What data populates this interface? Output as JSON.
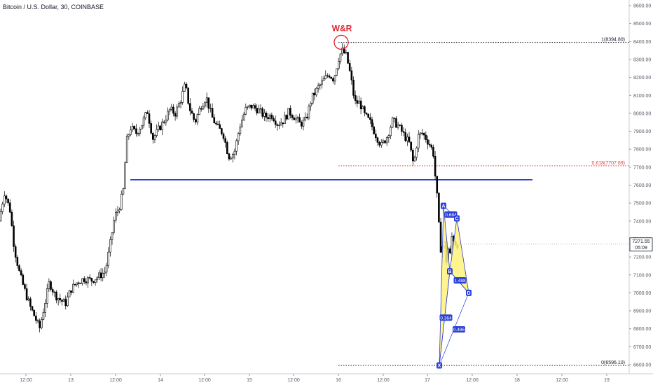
{
  "symbol_title": "Bitcoin / U.S. Dollar, 30, COINBASE",
  "chart_data": {
    "type": "candlestick",
    "title": "Bitcoin / U.S. Dollar, 30, COINBASE",
    "y_ticks": [
      6600,
      6700,
      6800,
      6900,
      7000,
      7100,
      7200,
      7300,
      7400,
      7500,
      7600,
      7700,
      7800,
      7900,
      8000,
      8100,
      8200,
      8300,
      8400,
      8500,
      8600
    ],
    "y_tick_labels": [
      "6600.00",
      "6700.00",
      "6800.00",
      "6900.00",
      "7000.00",
      "7100.00",
      "7200.00",
      "7300.00",
      "7400.00",
      "7500.00",
      "7600.00",
      "7700.00",
      "7800.00",
      "7900.00",
      "8000.00",
      "8100.00",
      "8200.00",
      "8300.00",
      "8400.00",
      "8500.00",
      "8600.00"
    ],
    "ylim": [
      6560,
      8660
    ],
    "x_tick_labels": [
      "12:00",
      "13",
      "12:00",
      "14",
      "12:00",
      "15",
      "12:00",
      "16",
      "12:00",
      "17",
      "12:00",
      "18",
      "12:00",
      "19"
    ],
    "last_price_label": "7271.55",
    "countdown_label": "05:09",
    "candle_path": [
      [
        0,
        7400
      ],
      [
        8,
        7560
      ],
      [
        16,
        7460
      ],
      [
        22,
        7250
      ],
      [
        30,
        7100
      ],
      [
        38,
        7000
      ],
      [
        45,
        6920
      ],
      [
        52,
        6860
      ],
      [
        58,
        6800
      ],
      [
        64,
        6910
      ],
      [
        72,
        7060
      ],
      [
        80,
        6990
      ],
      [
        88,
        6960
      ],
      [
        95,
        6940
      ],
      [
        103,
        7020
      ],
      [
        112,
        7060
      ],
      [
        122,
        7080
      ],
      [
        132,
        7070
      ],
      [
        142,
        7090
      ],
      [
        152,
        7120
      ],
      [
        158,
        7250
      ],
      [
        165,
        7420
      ],
      [
        172,
        7480
      ],
      [
        178,
        7580
      ],
      [
        182,
        7840
      ],
      [
        188,
        7920
      ],
      [
        196,
        7890
      ],
      [
        204,
        7940
      ],
      [
        212,
        8010
      ],
      [
        220,
        7860
      ],
      [
        228,
        7910
      ],
      [
        236,
        7960
      ],
      [
        244,
        8020
      ],
      [
        252,
        8000
      ],
      [
        260,
        8080
      ],
      [
        266,
        8160
      ],
      [
        272,
        8030
      ],
      [
        280,
        7950
      ],
      [
        288,
        8040
      ],
      [
        296,
        8090
      ],
      [
        304,
        7980
      ],
      [
        312,
        7920
      ],
      [
        320,
        7890
      ],
      [
        328,
        7760
      ],
      [
        336,
        7780
      ],
      [
        344,
        7930
      ],
      [
        352,
        8020
      ],
      [
        360,
        8040
      ],
      [
        370,
        8020
      ],
      [
        380,
        7980
      ],
      [
        390,
        7990
      ],
      [
        398,
        7940
      ],
      [
        406,
        7960
      ],
      [
        414,
        8010
      ],
      [
        422,
        7980
      ],
      [
        430,
        7940
      ],
      [
        438,
        7960
      ],
      [
        446,
        8080
      ],
      [
        455,
        8140
      ],
      [
        463,
        8180
      ],
      [
        471,
        8220
      ],
      [
        478,
        8190
      ],
      [
        485,
        8310
      ],
      [
        490,
        8350
      ],
      [
        496,
        8320
      ],
      [
        502,
        8210
      ],
      [
        508,
        8060
      ],
      [
        515,
        8060
      ],
      [
        522,
        7990
      ],
      [
        530,
        7950
      ],
      [
        538,
        7880
      ],
      [
        546,
        7820
      ],
      [
        554,
        7870
      ],
      [
        562,
        7960
      ],
      [
        570,
        7930
      ],
      [
        578,
        7880
      ],
      [
        586,
        7830
      ],
      [
        592,
        7710
      ],
      [
        598,
        7870
      ],
      [
        604,
        7890
      ],
      [
        610,
        7860
      ],
      [
        616,
        7820
      ],
      [
        620,
        7780
      ],
      [
        623,
        7640
      ],
      [
        626,
        7510
      ],
      [
        629,
        7310
      ],
      [
        632,
        7200
      ],
      [
        635,
        7330
      ],
      [
        638,
        7160
      ],
      [
        641,
        7250
      ],
      [
        644,
        7210
      ],
      [
        647,
        7330
      ],
      [
        650,
        7290
      ],
      [
        653,
        7270
      ]
    ],
    "horizontal_support": {
      "price": 7630,
      "x_start_label": "13",
      "x_end_label": "18"
    },
    "fib_levels": [
      {
        "ratio_label": "1(8394.80)",
        "price": 8394.8,
        "color": "#131722"
      },
      {
        "ratio_label": "0.618(7707.69)",
        "price": 7707.69,
        "color": "#e03e3e"
      },
      {
        "ratio_label": "0(6596.10)",
        "price": 6596.1,
        "color": "#131722"
      }
    ],
    "annotation": {
      "text": "W&R",
      "price": 8380,
      "color": "#e0242e"
    },
    "harmonic_pattern": {
      "points": [
        {
          "label": "X",
          "price": 6596
        },
        {
          "label": "A",
          "price": 7485
        },
        {
          "label": "B",
          "price": 7120
        },
        {
          "label": "C",
          "price": 7415
        },
        {
          "label": "D",
          "price": 7000
        }
      ],
      "ratios": [
        "0.684",
        "1.488",
        "0.364",
        "0.486"
      ],
      "fill_color": "#fff27a",
      "line_color": "#2a3fd6"
    }
  }
}
